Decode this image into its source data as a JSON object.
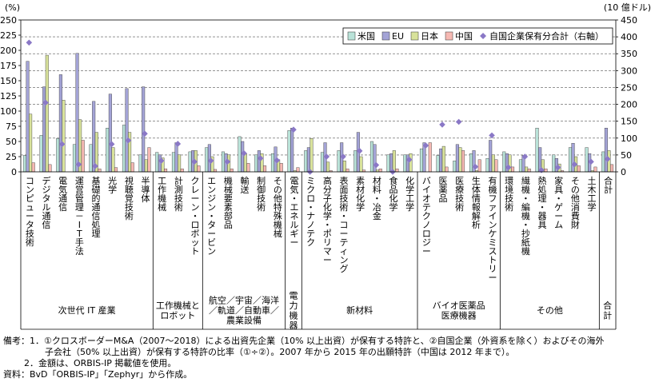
{
  "chart_data": {
    "type": "bar",
    "title": "",
    "ylabel_left": "(%)",
    "ylabel_right": "(10 億ドル)",
    "ylim_left": [
      0,
      250
    ],
    "ylim_right": [
      0,
      450
    ],
    "yticks_left": [
      0,
      25,
      50,
      75,
      100,
      125,
      150,
      175,
      200,
      225,
      250
    ],
    "yticks_right": [
      0,
      50,
      100,
      150,
      200,
      250,
      300,
      350,
      400,
      450
    ],
    "grid": "dashed horizontal at right-axis 50, 100, 150, 200, 250, 300, 350",
    "legend_position": "top-right",
    "categories": [
      "コンピュータ技術",
      "デジタル通信",
      "電気通信",
      "運営管理－IT手法",
      "基礎的通信処理",
      "光学",
      "視聴覚技術",
      "半導体",
      "工作機械",
      "計測技術",
      "クレーン・ロボット",
      "エンジン・タービン",
      "機械要素部品",
      "輸送",
      "制御技術",
      "その他特殊機械",
      "電気・エネルギー",
      "ミクロ・ナノテク",
      "高分子化学・ポリマー",
      "表面技術・コーティング",
      "素材化学",
      "材料・冶金",
      "食品化学",
      "化学工学",
      "バイオテクノロジー",
      "医薬品",
      "医療技術",
      "生体情報解析",
      "有機ファインケミストリー",
      "環境技術",
      "繊機・編機・抄紙機",
      "熱処理・器具",
      "家具・ゲーム",
      "その他消費財",
      "土木工学",
      "合計"
    ],
    "groups": [
      {
        "label": [
          "次世代 IT 産業"
        ],
        "start": 0,
        "end": 7
      },
      {
        "label": [
          "工作機械と",
          "ロボット"
        ],
        "start": 8,
        "end": 10
      },
      {
        "label": [
          "航空／宇宙／海洋",
          "／軌道／自動車／",
          "農業設備"
        ],
        "start": 11,
        "end": 15
      },
      {
        "label": [
          "電",
          "力",
          "機",
          "器"
        ],
        "start": 16,
        "end": 16
      },
      {
        "label": [
          "新材料"
        ],
        "start": 17,
        "end": 23
      },
      {
        "label": [
          "バイオ医薬品",
          "医療機器"
        ],
        "start": 24,
        "end": 28
      },
      {
        "label": [
          "その他"
        ],
        "start": 29,
        "end": 34
      },
      {
        "label": [
          "合",
          "計"
        ],
        "start": 35,
        "end": 35
      }
    ],
    "series": [
      {
        "name": "米国",
        "color": "#b9e2d8",
        "values": [
          27,
          60,
          55,
          45,
          45,
          72,
          77,
          28,
          32,
          32,
          33,
          40,
          33,
          58,
          28,
          30,
          68,
          35,
          32,
          35,
          35,
          50,
          28,
          28,
          38,
          27,
          18,
          30,
          22,
          33,
          20,
          72,
          28,
          40,
          40,
          33
        ]
      },
      {
        "name": "EU",
        "color": "#a3a3d6",
        "values": [
          182,
          140,
          160,
          195,
          116,
          128,
          137,
          140,
          28,
          48,
          35,
          45,
          30,
          50,
          35,
          41,
          72,
          40,
          48,
          48,
          65,
          45,
          30,
          28,
          48,
          38,
          45,
          35,
          52,
          30,
          27,
          40,
          22,
          47,
          30,
          72
        ]
      },
      {
        "name": "日本",
        "color": "#d8e29b",
        "values": [
          95,
          192,
          118,
          86,
          65,
          40,
          65,
          20,
          23,
          28,
          35,
          25,
          28,
          30,
          30,
          20,
          2,
          55,
          16,
          18,
          25,
          3,
          35,
          30,
          0,
          42,
          40,
          2,
          28,
          28,
          8,
          20,
          13,
          25,
          2,
          35
        ]
      },
      {
        "name": "中国",
        "color": "#f6b9b3",
        "values": [
          15,
          12,
          0,
          52,
          5,
          7,
          15,
          40,
          5,
          5,
          10,
          4,
          5,
          14,
          10,
          14,
          7,
          0,
          2,
          5,
          3,
          5,
          5,
          0,
          48,
          8,
          35,
          20,
          20,
          8,
          5,
          5,
          2,
          10,
          8,
          12
        ]
      }
    ],
    "line_series": {
      "name": "自国企業保有分合計（右軸）",
      "axis": "right",
      "color": "#8a78c6",
      "values": [
        383,
        205,
        82,
        22,
        17,
        82,
        93,
        113,
        33,
        83,
        30,
        33,
        30,
        55,
        40,
        34,
        125,
        0,
        45,
        45,
        62,
        20,
        0,
        36,
        78,
        140,
        148,
        15,
        108,
        13,
        45,
        5,
        13,
        22,
        30,
        38
      ]
    }
  },
  "notes": [
    "備考：1．①クロスボーダーM&A（2007～2018）による出資先企業（10% 以上出資）が保有する特許と、②自国企業（外資系を除く）およびその海外",
    "子会社（50% 以上出資）が保有する特許の比率（①÷②）。2007 年から 2015 年の出願特許（中国は 2012 年まで）。",
    "2．金額は、ORBIS-IP 掲載値を使用。",
    "資料：BvD「ORBIS-IP」「Zephyr」から作成。"
  ]
}
